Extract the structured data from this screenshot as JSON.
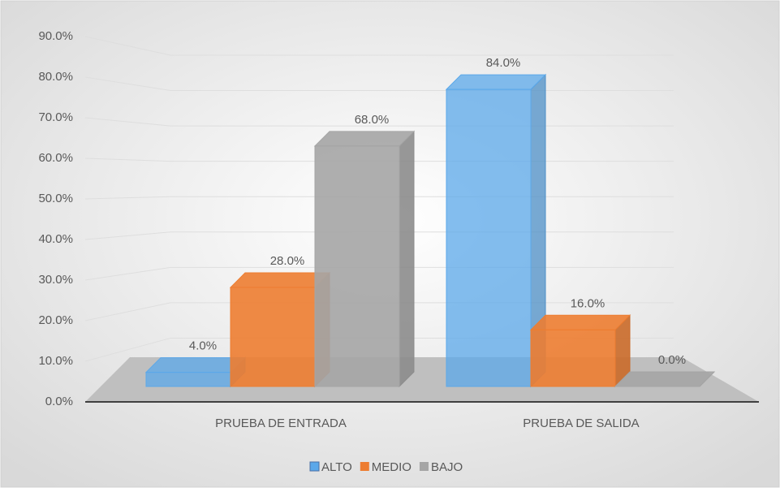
{
  "chart_data": {
    "type": "bar3d",
    "categories": [
      "PRUEBA DE ENTRADA",
      "PRUEBA DE SALIDA"
    ],
    "series": [
      {
        "name": "ALTO",
        "color": "#5ba8ea",
        "values": [
          4,
          84
        ],
        "value_labels": [
          "4.0%",
          "84.0%"
        ]
      },
      {
        "name": "MEDIO",
        "color": "#ed7d31",
        "values": [
          28,
          16
        ],
        "value_labels": [
          "28.0%",
          "16.0%"
        ]
      },
      {
        "name": "BAJO",
        "color": "#a5a5a5",
        "values": [
          68,
          0
        ],
        "value_labels": [
          "68.0%",
          "0.0%"
        ]
      }
    ],
    "ylim": [
      0,
      90
    ],
    "yticks": [
      {
        "value": 0,
        "label": "0.0%"
      },
      {
        "value": 10,
        "label": "10.0%"
      },
      {
        "value": 20,
        "label": "20.0%"
      },
      {
        "value": 30,
        "label": "30.0%"
      },
      {
        "value": 40,
        "label": "40.0%"
      },
      {
        "value": 50,
        "label": "50.0%"
      },
      {
        "value": 60,
        "label": "60.0%"
      },
      {
        "value": 70,
        "label": "70.0%"
      },
      {
        "value": 80,
        "label": "80.0%"
      },
      {
        "value": 90,
        "label": "90.0%"
      }
    ],
    "grid": true,
    "legend": "bottom"
  }
}
